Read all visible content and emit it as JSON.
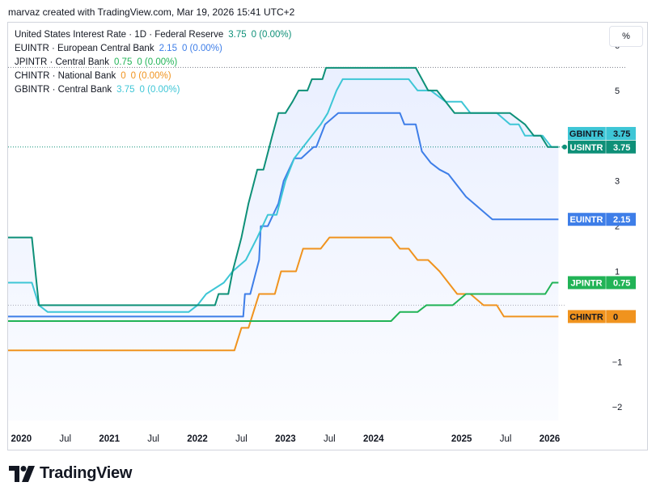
{
  "header": {
    "text": "marvaz created with TradingView.com, Mar 19, 2026 15:41 UTC+2"
  },
  "toolbar": {
    "percent_label": "%"
  },
  "brand": {
    "name": "TradingView"
  },
  "chart_data": {
    "type": "line",
    "x_tick_labels": [
      {
        "label": "2020",
        "t": 2020.0,
        "bold": true
      },
      {
        "label": "Jul",
        "t": 2020.5,
        "bold": false
      },
      {
        "label": "2021",
        "t": 2021.0,
        "bold": true
      },
      {
        "label": "Jul",
        "t": 2021.5,
        "bold": false
      },
      {
        "label": "2022",
        "t": 2022.0,
        "bold": true
      },
      {
        "label": "Jul",
        "t": 2022.5,
        "bold": false
      },
      {
        "label": "2023",
        "t": 2023.0,
        "bold": true
      },
      {
        "label": "Jul",
        "t": 2023.5,
        "bold": false
      },
      {
        "label": "2024",
        "t": 2024.0,
        "bold": true
      },
      {
        "label": "2025",
        "t": 2025.0,
        "bold": true
      },
      {
        "label": "Jul",
        "t": 2025.5,
        "bold": false
      },
      {
        "label": "2026",
        "t": 2026.0,
        "bold": true
      }
    ],
    "y_ticks": [
      -2,
      -1,
      1,
      2,
      3,
      5,
      6
    ],
    "y_tick_labels": [
      "−2",
      "−1",
      "1",
      "2",
      "3",
      "5",
      "6"
    ],
    "ylim": [
      -2.3,
      6.5
    ],
    "xlim": [
      2019.85,
      2026.17
    ],
    "series": [
      {
        "name": "United States Interest Rate · 1D · Federal Reserve",
        "tag": "USINTR",
        "color": "#0e9078",
        "last": "3.75",
        "change": "0 (0.00%)",
        "filled": true,
        "points": [
          [
            2019.85,
            1.75
          ],
          [
            2020.12,
            1.75
          ],
          [
            2020.2,
            0.25
          ],
          [
            2022.2,
            0.25
          ],
          [
            2022.24,
            0.5
          ],
          [
            2022.35,
            0.5
          ],
          [
            2022.4,
            1.0
          ],
          [
            2022.5,
            1.75
          ],
          [
            2022.58,
            2.5
          ],
          [
            2022.68,
            3.25
          ],
          [
            2022.75,
            3.25
          ],
          [
            2022.85,
            4.0
          ],
          [
            2022.92,
            4.5
          ],
          [
            2023.0,
            4.5
          ],
          [
            2023.08,
            4.75
          ],
          [
            2023.15,
            5.0
          ],
          [
            2023.25,
            5.0
          ],
          [
            2023.3,
            5.25
          ],
          [
            2023.42,
            5.25
          ],
          [
            2023.46,
            5.5
          ],
          [
            2024.48,
            5.5
          ],
          [
            2024.62,
            5.0
          ],
          [
            2024.72,
            5.0
          ],
          [
            2024.82,
            4.75
          ],
          [
            2024.92,
            4.5
          ],
          [
            2025.55,
            4.5
          ],
          [
            2025.72,
            4.25
          ],
          [
            2025.82,
            4.0
          ],
          [
            2025.9,
            4.0
          ],
          [
            2025.98,
            3.75
          ],
          [
            2026.1,
            3.75
          ]
        ]
      },
      {
        "name": "EUINTR · European Central Bank",
        "tag": "EUINTR",
        "color": "#3e7ee8",
        "last": "2.15",
        "change": "0 (0.00%)",
        "points": [
          [
            2019.85,
            0.0
          ],
          [
            2022.4,
            0.0
          ],
          [
            2022.52,
            0.0
          ],
          [
            2022.54,
            0.5
          ],
          [
            2022.6,
            0.5
          ],
          [
            2022.7,
            1.25
          ],
          [
            2022.72,
            2.0
          ],
          [
            2022.8,
            2.0
          ],
          [
            2022.92,
            2.5
          ],
          [
            2022.98,
            3.0
          ],
          [
            2023.1,
            3.5
          ],
          [
            2023.18,
            3.5
          ],
          [
            2023.32,
            3.75
          ],
          [
            2023.35,
            3.75
          ],
          [
            2023.45,
            4.25
          ],
          [
            2023.6,
            4.5
          ],
          [
            2024.3,
            4.5
          ],
          [
            2024.35,
            4.25
          ],
          [
            2024.48,
            4.25
          ],
          [
            2024.55,
            3.65
          ],
          [
            2024.65,
            3.4
          ],
          [
            2024.75,
            3.25
          ],
          [
            2024.85,
            3.15
          ],
          [
            2024.95,
            2.9
          ],
          [
            2025.05,
            2.65
          ],
          [
            2025.2,
            2.4
          ],
          [
            2025.35,
            2.15
          ],
          [
            2025.5,
            2.15
          ],
          [
            2026.1,
            2.15
          ]
        ]
      },
      {
        "name": "JPINTR · Central Bank",
        "tag": "JPINTR",
        "color": "#21b356",
        "last": "0.75",
        "change": "0 (0.00%)",
        "points": [
          [
            2019.85,
            -0.1
          ],
          [
            2024.2,
            -0.1
          ],
          [
            2024.3,
            0.1
          ],
          [
            2024.5,
            0.1
          ],
          [
            2024.6,
            0.25
          ],
          [
            2024.9,
            0.25
          ],
          [
            2025.05,
            0.5
          ],
          [
            2025.95,
            0.5
          ],
          [
            2026.03,
            0.75
          ],
          [
            2026.1,
            0.75
          ]
        ]
      },
      {
        "name": "CHINTR · National Bank",
        "tag": "CHINTR",
        "color": "#f0931e",
        "last": "0",
        "change": "0 (0.00%)",
        "points": [
          [
            2019.85,
            -0.75
          ],
          [
            2022.42,
            -0.75
          ],
          [
            2022.5,
            -0.25
          ],
          [
            2022.58,
            -0.25
          ],
          [
            2022.7,
            0.5
          ],
          [
            2022.88,
            0.5
          ],
          [
            2022.95,
            1.0
          ],
          [
            2023.12,
            1.0
          ],
          [
            2023.2,
            1.5
          ],
          [
            2023.4,
            1.5
          ],
          [
            2023.5,
            1.75
          ],
          [
            2024.2,
            1.75
          ],
          [
            2024.3,
            1.5
          ],
          [
            2024.4,
            1.5
          ],
          [
            2024.5,
            1.25
          ],
          [
            2024.62,
            1.25
          ],
          [
            2024.75,
            1.0
          ],
          [
            2024.85,
            0.75
          ],
          [
            2024.95,
            0.5
          ],
          [
            2025.1,
            0.5
          ],
          [
            2025.25,
            0.25
          ],
          [
            2025.4,
            0.25
          ],
          [
            2025.48,
            0.0
          ],
          [
            2026.1,
            0.0
          ]
        ]
      },
      {
        "name": "GBINTR · Central Bank",
        "tag": "GBINTR",
        "color": "#3ec6d6",
        "last": "3.75",
        "change": "0 (0.00%)",
        "points": [
          [
            2019.85,
            0.75
          ],
          [
            2020.12,
            0.75
          ],
          [
            2020.2,
            0.25
          ],
          [
            2020.3,
            0.1
          ],
          [
            2021.9,
            0.1
          ],
          [
            2022.0,
            0.25
          ],
          [
            2022.1,
            0.5
          ],
          [
            2022.3,
            0.75
          ],
          [
            2022.4,
            1.0
          ],
          [
            2022.55,
            1.25
          ],
          [
            2022.68,
            1.75
          ],
          [
            2022.8,
            2.25
          ],
          [
            2022.9,
            2.25
          ],
          [
            2023.0,
            3.0
          ],
          [
            2023.1,
            3.5
          ],
          [
            2023.3,
            4.0
          ],
          [
            2023.4,
            4.25
          ],
          [
            2023.48,
            4.5
          ],
          [
            2023.58,
            5.0
          ],
          [
            2023.65,
            5.25
          ],
          [
            2024.4,
            5.25
          ],
          [
            2024.5,
            5.0
          ],
          [
            2024.65,
            5.0
          ],
          [
            2024.82,
            4.75
          ],
          [
            2025.0,
            4.75
          ],
          [
            2025.1,
            4.5
          ],
          [
            2025.4,
            4.5
          ],
          [
            2025.55,
            4.25
          ],
          [
            2025.65,
            4.25
          ],
          [
            2025.72,
            4.0
          ],
          [
            2025.92,
            4.0
          ],
          [
            2026.02,
            3.75
          ],
          [
            2026.1,
            3.75
          ]
        ]
      }
    ],
    "price_tags": [
      {
        "tag": "GBINTR",
        "value": "3.75",
        "color": "#3ec6d6",
        "y": 4.05
      },
      {
        "tag": "USINTR",
        "value": "3.75",
        "color": "#0e9078",
        "y": 3.75
      },
      {
        "tag": "EUINTR",
        "value": "2.15",
        "color": "#3e7ee8",
        "y": 2.15
      },
      {
        "tag": "JPINTR",
        "value": "0.75",
        "color": "#21b356",
        "y": 0.75
      },
      {
        "tag": "CHINTR",
        "value": "0",
        "color": "#f0931e",
        "y": 0.0
      }
    ]
  }
}
